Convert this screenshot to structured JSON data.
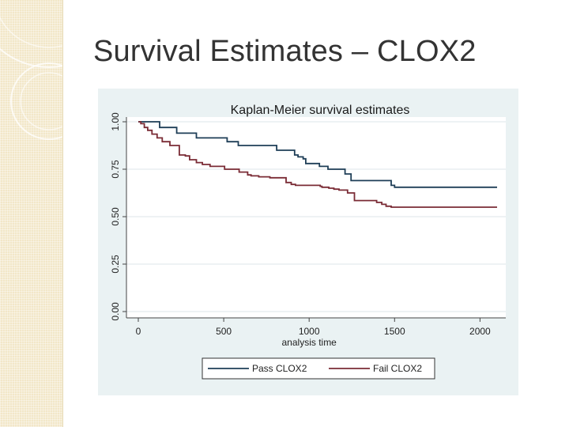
{
  "slide": {
    "title": "Survival Estimates – CLOX2"
  },
  "colors": {
    "pass": "#1e3e57",
    "fail": "#7a2b35",
    "panel": "#eaf2f3",
    "plot": "#ffffff"
  },
  "chart_data": {
    "type": "line",
    "step": true,
    "title": "Kaplan-Meier survival estimates",
    "xlabel": "analysis time",
    "ylabel": "",
    "xlim": [
      0,
      2100
    ],
    "ylim": [
      0,
      1
    ],
    "xticks": [
      0,
      500,
      1000,
      1500,
      2000
    ],
    "xtick_labels": [
      "0",
      "500",
      "1000",
      "1500",
      "2000"
    ],
    "yticks": [
      0,
      0.25,
      0.5,
      0.75,
      1
    ],
    "ytick_labels": [
      "0.00",
      "0.25",
      "0.50",
      "0.75",
      "1.00"
    ],
    "grid": true,
    "legend": "bottom",
    "series": [
      {
        "name": "Pass CLOX2",
        "color_key": "pass",
        "x": [
          0,
          125,
          225,
          340,
          520,
          585,
          810,
          915,
          935,
          965,
          980,
          1040,
          1060,
          1095,
          1110,
          1165,
          1210,
          1245,
          1265,
          1480,
          1500,
          1600,
          2100
        ],
        "y": [
          1.0,
          0.97,
          0.94,
          0.915,
          0.895,
          0.875,
          0.85,
          0.825,
          0.815,
          0.805,
          0.78,
          0.78,
          0.765,
          0.765,
          0.75,
          0.75,
          0.725,
          0.69,
          0.69,
          0.665,
          0.655,
          0.655,
          0.655
        ]
      },
      {
        "name": "Fail CLOX2",
        "color_key": "fail",
        "x": [
          0,
          15,
          35,
          55,
          80,
          110,
          140,
          185,
          240,
          275,
          300,
          340,
          375,
          420,
          505,
          590,
          640,
          660,
          705,
          770,
          865,
          895,
          920,
          1040,
          1065,
          1075,
          1115,
          1145,
          1175,
          1225,
          1265,
          1380,
          1395,
          1405,
          1425,
          1430,
          1450,
          1480,
          1600,
          2100
        ],
        "y": [
          1.0,
          0.99,
          0.97,
          0.955,
          0.935,
          0.915,
          0.895,
          0.875,
          0.825,
          0.82,
          0.8,
          0.785,
          0.775,
          0.765,
          0.75,
          0.735,
          0.72,
          0.715,
          0.71,
          0.705,
          0.68,
          0.67,
          0.665,
          0.665,
          0.66,
          0.655,
          0.65,
          0.645,
          0.64,
          0.625,
          0.585,
          0.585,
          0.575,
          0.575,
          0.565,
          0.565,
          0.555,
          0.55,
          0.55,
          0.55
        ]
      }
    ]
  }
}
